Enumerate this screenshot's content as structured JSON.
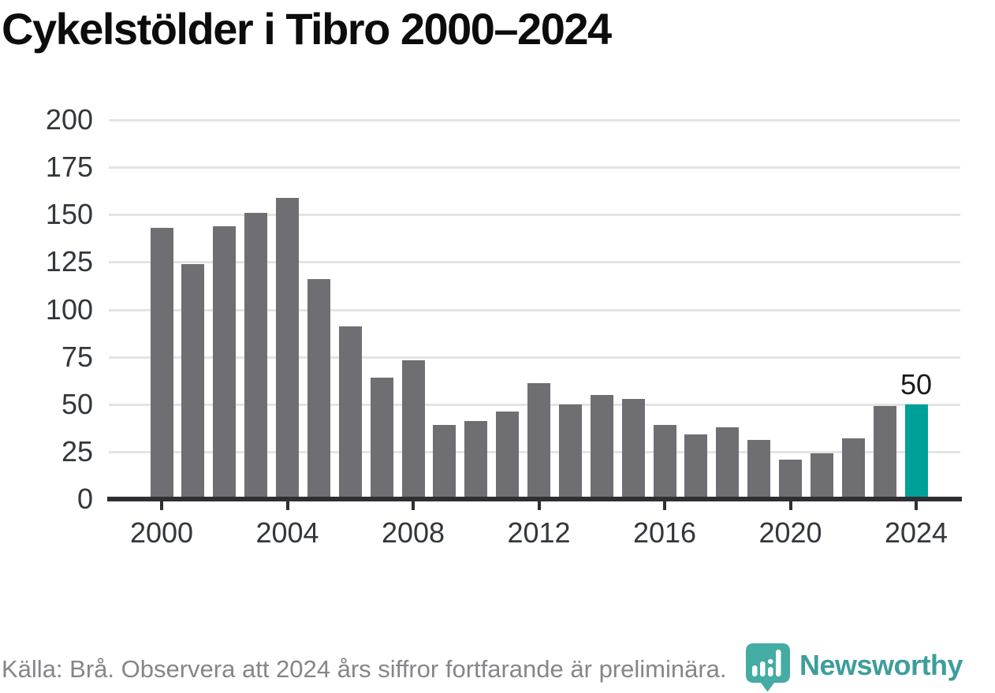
{
  "title": "Cykelstölder i Tibro 2000–2024",
  "footer": {
    "source_note": "Källa: Brå. Observera att 2024 års siffror fortfarande är preliminära.",
    "brand": "Newsworthy"
  },
  "colors": {
    "title_text": "#0c0c0c",
    "bar": "#6e6e73",
    "bar_highlight": "#00a09a",
    "gridline": "#e4e4e4",
    "axis": "#2f2f33",
    "axis_text": "#33373c",
    "footer_text": "#85868a",
    "brand_teal": "#3d9e9a",
    "logo_teal": "#44aca2"
  },
  "chart_data": {
    "type": "bar",
    "title": "Cykelstölder i Tibro 2000–2024",
    "xlabel": "",
    "ylabel": "",
    "x": [
      2000,
      2001,
      2002,
      2003,
      2004,
      2005,
      2006,
      2007,
      2008,
      2009,
      2010,
      2011,
      2012,
      2013,
      2014,
      2015,
      2016,
      2017,
      2018,
      2019,
      2020,
      2021,
      2022,
      2023,
      2024
    ],
    "values": [
      143,
      124,
      144,
      151,
      159,
      116,
      91,
      64,
      73,
      39,
      41,
      46,
      61,
      50,
      55,
      53,
      39,
      34,
      38,
      31,
      21,
      24,
      32,
      49,
      50
    ],
    "highlight_index": 24,
    "highlight_label": "50",
    "ylim": [
      0,
      200
    ],
    "yticks": [
      0,
      25,
      50,
      75,
      100,
      125,
      150,
      175,
      200
    ],
    "xticks": [
      2000,
      2004,
      2008,
      2012,
      2016,
      2020,
      2024
    ],
    "grid": "horizontal",
    "legend": "none"
  }
}
